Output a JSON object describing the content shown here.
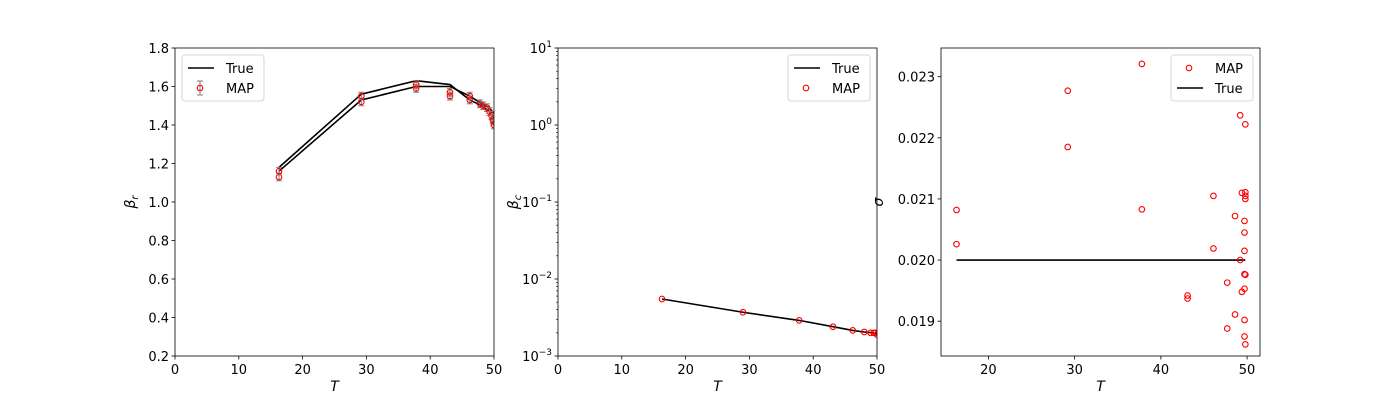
{
  "chart_data": [
    {
      "type": "line",
      "xlabel": "T",
      "ylabel": "β_r",
      "ylabel_main": "β",
      "ylabel_sub": "r",
      "xlim": [
        0,
        50
      ],
      "ylim": [
        0.2,
        1.8
      ],
      "xscale": "linear",
      "yscale": "linear",
      "xticks": [
        0,
        10,
        20,
        30,
        40,
        50
      ],
      "yticks": [
        0.2,
        0.4,
        0.6,
        0.8,
        1.0,
        1.2,
        1.4,
        1.6,
        1.8
      ],
      "xtick_labels": [
        "0",
        "10",
        "20",
        "30",
        "40",
        "50"
      ],
      "ytick_labels": [
        "0.2",
        "0.4",
        "0.6",
        "0.8",
        "1.0",
        "1.2",
        "1.4",
        "1.6",
        "1.8"
      ],
      "legend": {
        "position": "upper-left",
        "entries": [
          "True",
          "MAP"
        ]
      },
      "series": [
        {
          "name": "True",
          "kind": "line",
          "color": "#000000",
          "segments": [
            [
              [
                16.3,
                1.18
              ],
              [
                29.2,
                1.56
              ],
              [
                37.8,
                1.63
              ],
              [
                43.1,
                1.61
              ],
              [
                46.2,
                1.53
              ],
              [
                48.1,
                1.5
              ],
              [
                49.2,
                1.47
              ],
              [
                50,
                1.44
              ]
            ],
            [
              [
                16.3,
                1.16
              ],
              [
                29.2,
                1.53
              ],
              [
                37.8,
                1.6
              ],
              [
                43.1,
                1.6
              ],
              [
                46.2,
                1.55
              ],
              [
                48.1,
                1.51
              ],
              [
                49.2,
                1.49
              ],
              [
                50,
                1.46
              ]
            ]
          ]
        },
        {
          "name": "MAP",
          "kind": "errorbar-scatter",
          "color": "#ff0000",
          "errcolor": "#808080",
          "points": [
            {
              "x": 16.3,
              "y": 1.13,
              "e": 0.02
            },
            {
              "x": 16.3,
              "y": 1.16,
              "e": 0.02
            },
            {
              "x": 29.2,
              "y": 1.52,
              "e": 0.02
            },
            {
              "x": 29.2,
              "y": 1.55,
              "e": 0.02
            },
            {
              "x": 37.8,
              "y": 1.59,
              "e": 0.02
            },
            {
              "x": 37.8,
              "y": 1.61,
              "e": 0.02
            },
            {
              "x": 43.1,
              "y": 1.55,
              "e": 0.02
            },
            {
              "x": 43.1,
              "y": 1.57,
              "e": 0.02
            },
            {
              "x": 46.2,
              "y": 1.53,
              "e": 0.02
            },
            {
              "x": 46.2,
              "y": 1.55,
              "e": 0.02
            },
            {
              "x": 47.8,
              "y": 1.51,
              "e": 0.02
            },
            {
              "x": 48.3,
              "y": 1.5,
              "e": 0.02
            },
            {
              "x": 48.9,
              "y": 1.49,
              "e": 0.02
            },
            {
              "x": 49.3,
              "y": 1.47,
              "e": 0.02
            },
            {
              "x": 49.6,
              "y": 1.45,
              "e": 0.02
            },
            {
              "x": 49.8,
              "y": 1.43,
              "e": 0.02
            },
            {
              "x": 49.9,
              "y": 1.42,
              "e": 0.02
            },
            {
              "x": 50.0,
              "y": 1.4,
              "e": 0.02
            }
          ]
        }
      ]
    },
    {
      "type": "line",
      "xlabel": "T",
      "ylabel": "β_c",
      "ylabel_main": "β",
      "ylabel_sub": "c",
      "xlim": [
        0,
        50
      ],
      "ylim": [
        0.001,
        10
      ],
      "xscale": "linear",
      "yscale": "log",
      "xticks": [
        0,
        10,
        20,
        30,
        40,
        50
      ],
      "xtick_labels": [
        "0",
        "10",
        "20",
        "30",
        "40",
        "50"
      ],
      "yticks": [
        0.001,
        0.01,
        0.1,
        1,
        10
      ],
      "ytick_labels": [
        {
          "base": "10",
          "exp": "−3"
        },
        {
          "base": "10",
          "exp": "−2"
        },
        {
          "base": "10",
          "exp": "−1"
        },
        {
          "base": "10",
          "exp": "0"
        },
        {
          "base": "10",
          "exp": "1"
        }
      ],
      "legend": {
        "position": "upper-right",
        "entries": [
          "True",
          "MAP"
        ]
      },
      "series": [
        {
          "name": "True",
          "kind": "line",
          "color": "#000000",
          "points": [
            [
              16.3,
              0.0055
            ],
            [
              29.0,
              0.0037
            ],
            [
              37.8,
              0.0029
            ],
            [
              43.1,
              0.0024
            ],
            [
              46.2,
              0.00215
            ],
            [
              48.0,
              0.00205
            ],
            [
              49.3,
              0.002
            ],
            [
              50,
              0.00195
            ]
          ]
        },
        {
          "name": "MAP",
          "kind": "scatter",
          "color": "#ff0000",
          "points": [
            [
              16.3,
              0.0055
            ],
            [
              29.0,
              0.0037
            ],
            [
              37.8,
              0.0029
            ],
            [
              43.1,
              0.0024
            ],
            [
              46.2,
              0.00215
            ],
            [
              48.0,
              0.00205
            ],
            [
              49.0,
              0.002
            ],
            [
              49.5,
              0.002
            ],
            [
              49.8,
              0.002
            ],
            [
              50,
              0.0019
            ]
          ]
        }
      ]
    },
    {
      "type": "scatter",
      "xlabel": "T",
      "ylabel": "σ",
      "xlim": [
        14.5,
        51.5
      ],
      "ylim": [
        0.01843,
        0.02347
      ],
      "xscale": "linear",
      "yscale": "linear",
      "xticks": [
        20,
        30,
        40,
        50
      ],
      "xtick_labels": [
        "20",
        "30",
        "40",
        "50"
      ],
      "yticks": [
        0.019,
        0.02,
        0.021,
        0.022,
        0.023
      ],
      "ytick_labels": [
        "0.019",
        "0.020",
        "0.021",
        "0.022",
        "0.023"
      ],
      "legend": {
        "position": "upper-right",
        "entries": [
          "MAP",
          "True"
        ]
      },
      "series": [
        {
          "name": "MAP",
          "kind": "scatter",
          "color": "#ff0000",
          "points": [
            [
              16.3,
              0.02082
            ],
            [
              16.3,
              0.02026
            ],
            [
              29.2,
              0.02277
            ],
            [
              29.2,
              0.02185
            ],
            [
              37.8,
              0.02321
            ],
            [
              37.8,
              0.02083
            ],
            [
              43.1,
              0.01942
            ],
            [
              43.1,
              0.01937
            ],
            [
              46.1,
              0.02105
            ],
            [
              46.1,
              0.02019
            ],
            [
              47.7,
              0.01963
            ],
            [
              47.7,
              0.01888
            ],
            [
              48.6,
              0.02072
            ],
            [
              48.6,
              0.01911
            ],
            [
              49.2,
              0.02237
            ],
            [
              49.2,
              0.02
            ],
            [
              49.4,
              0.0211
            ],
            [
              49.4,
              0.01948
            ],
            [
              49.7,
              0.02064
            ],
            [
              49.7,
              0.02045
            ],
            [
              49.7,
              0.02015
            ],
            [
              49.7,
              0.01977
            ],
            [
              49.7,
              0.01953
            ],
            [
              49.7,
              0.01902
            ],
            [
              49.7,
              0.01875
            ],
            [
              49.8,
              0.02222
            ],
            [
              49.8,
              0.02111
            ],
            [
              49.8,
              0.02105
            ],
            [
              49.8,
              0.021
            ],
            [
              49.8,
              0.01976
            ],
            [
              49.8,
              0.01862
            ]
          ]
        },
        {
          "name": "True",
          "kind": "line",
          "color": "#000000",
          "points": [
            [
              16.3,
              0.02
            ],
            [
              49.8,
              0.02
            ]
          ]
        }
      ]
    }
  ]
}
